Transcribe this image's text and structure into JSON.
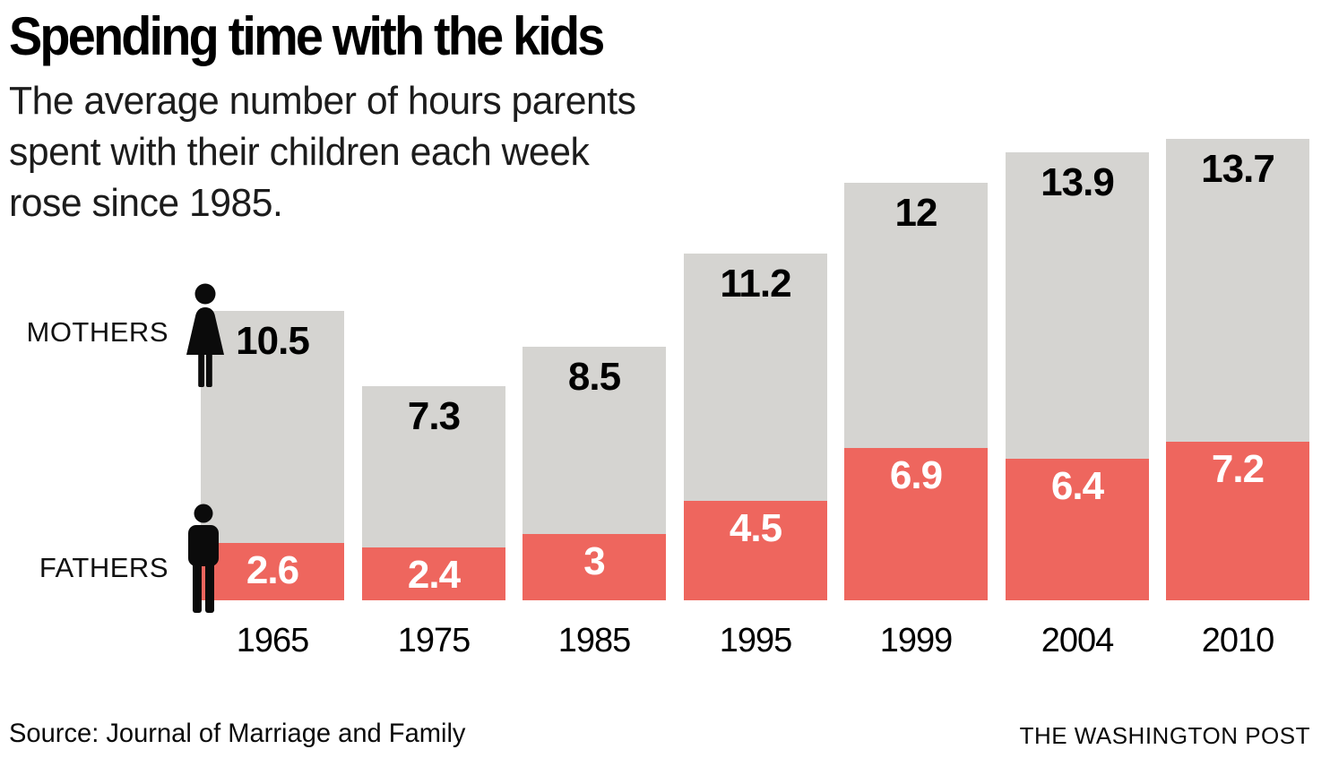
{
  "header": {
    "title": "Spending time with the kids",
    "subtitle_lines": [
      "The average number of hours parents",
      "spent with their children each week",
      "rose since 1985."
    ]
  },
  "legend": {
    "mothers_label": "MOTHERS",
    "fathers_label": "FATHERS",
    "mothers_icon": "woman-icon",
    "fathers_icon": "man-icon"
  },
  "footer": {
    "source": "Source: Journal of Marriage and Family",
    "credit": "THE WASHINGTON POST"
  },
  "colors": {
    "fathers_bar": "#ee665e",
    "mothers_bar": "#d5d4d1",
    "mothers_value_text": "#000000",
    "fathers_value_text": "#ffffff",
    "icon_black": "#0b0b0b"
  },
  "chart_data": {
    "type": "bar",
    "stacked": true,
    "grid": false,
    "title": "Spending time with the kids",
    "xlabel": "",
    "ylabel": "",
    "legend_position": "left",
    "categories": [
      "1965",
      "1975",
      "1985",
      "1995",
      "1999",
      "2004",
      "2010"
    ],
    "series": [
      {
        "name": "FATHERS",
        "values": [
          2.6,
          2.4,
          3,
          4.5,
          6.9,
          6.4,
          7.2
        ],
        "labels": [
          "2.6",
          "2.4",
          "3",
          "4.5",
          "6.9",
          "6.4",
          "7.2"
        ],
        "color": "#ee665e",
        "label_color": "#ffffff"
      },
      {
        "name": "MOTHERS",
        "values": [
          10.5,
          7.3,
          8.5,
          11.2,
          12,
          13.9,
          13.7
        ],
        "labels": [
          "10.5",
          "7.3",
          "8.5",
          "11.2",
          "12",
          "13.9",
          "13.7"
        ],
        "color": "#d5d4d1",
        "label_color": "#000000"
      }
    ]
  }
}
